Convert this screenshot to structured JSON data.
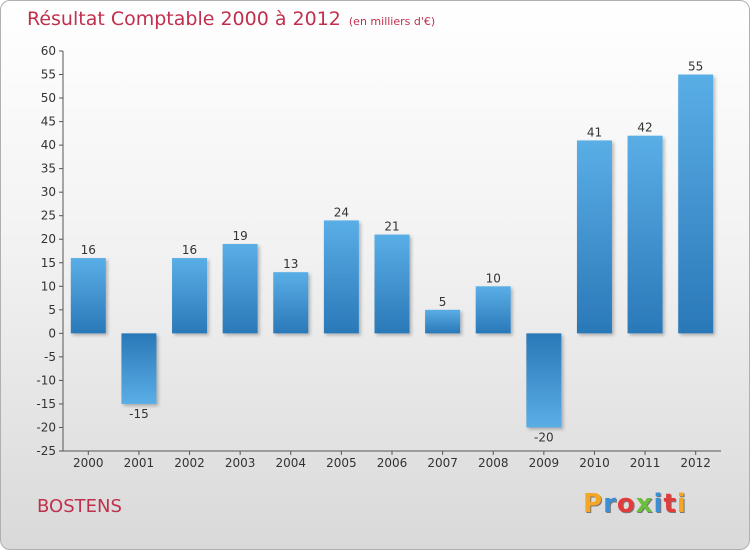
{
  "header": {
    "title": "Résultat Comptable 2000 à 2012",
    "unit": "(en milliers d'€)"
  },
  "footer": {
    "commune": "BOSTENS",
    "logo": "Proxiti",
    "logo_colors": [
      "#f5a623",
      "#3a8fd6",
      "#e23b3b",
      "#6cbf3a",
      "#3a8fd6",
      "#e23b3b",
      "#f5a623"
    ]
  },
  "colors": {
    "bar_top": "#5aaee6",
    "bar_bottom": "#2a78b8",
    "title": "#c0304d"
  },
  "chart_data": {
    "type": "bar",
    "title": "Résultat Comptable 2000 à 2012",
    "subtitle": "(en milliers d'€)",
    "xlabel": "",
    "ylabel": "",
    "categories": [
      "2000",
      "2001",
      "2002",
      "2003",
      "2004",
      "2005",
      "2006",
      "2007",
      "2008",
      "2009",
      "2010",
      "2011",
      "2012"
    ],
    "values": [
      16,
      -15,
      16,
      19,
      13,
      24,
      21,
      5,
      10,
      -20,
      41,
      42,
      55
    ],
    "ylim": [
      -25,
      60
    ],
    "yticks": [
      -25,
      -20,
      -15,
      -10,
      -5,
      0,
      5,
      10,
      15,
      20,
      25,
      30,
      35,
      40,
      45,
      50,
      55,
      60
    ],
    "grid": false
  }
}
